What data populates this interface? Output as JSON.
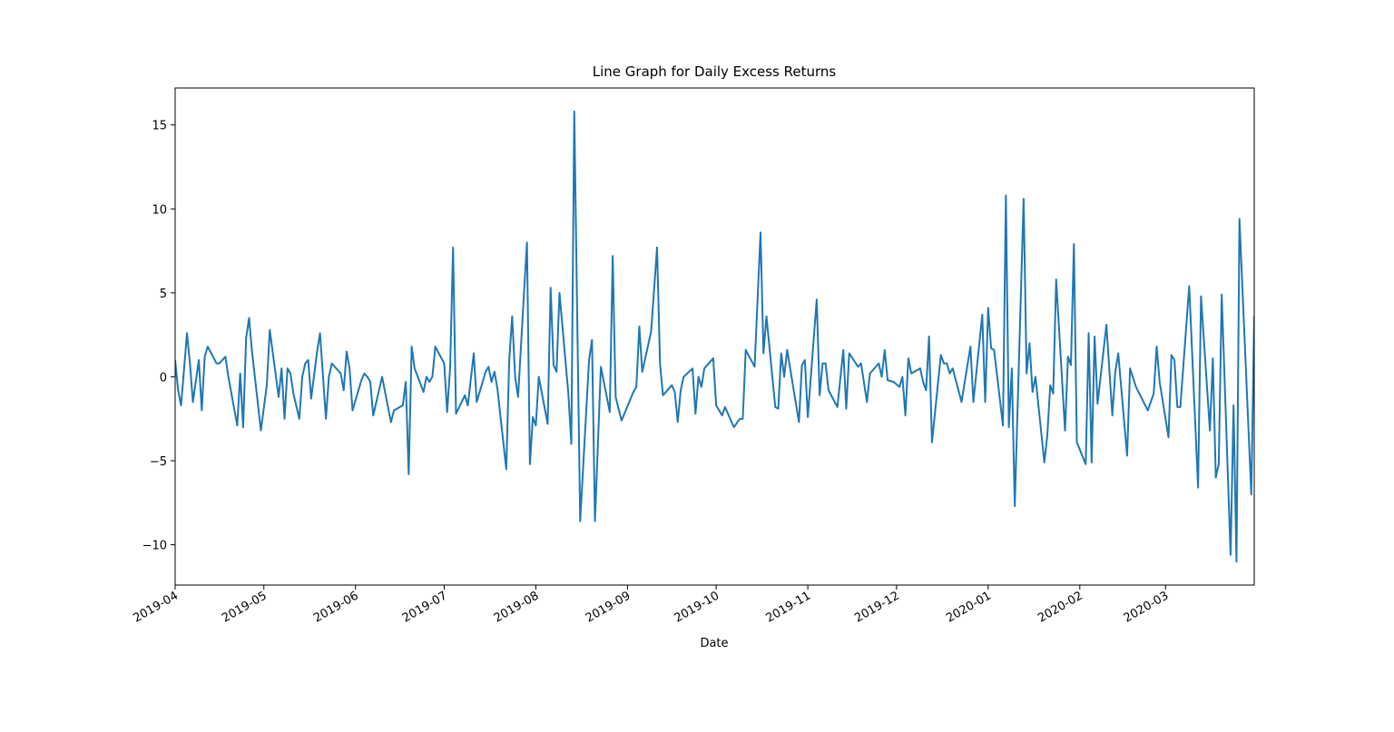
{
  "chart_data": {
    "type": "line",
    "title": "Line Graph for Daily Excess Returns",
    "xlabel": "Date",
    "color": "#1f77b4",
    "xlim": [
      0,
      365
    ],
    "ylim": [
      -12.4,
      17.2
    ],
    "xticks": [
      {
        "value": 0,
        "label": "2019-04"
      },
      {
        "value": 30,
        "label": "2019-05"
      },
      {
        "value": 61,
        "label": "2019-06"
      },
      {
        "value": 91,
        "label": "2019-07"
      },
      {
        "value": 122,
        "label": "2019-08"
      },
      {
        "value": 153,
        "label": "2019-09"
      },
      {
        "value": 183,
        "label": "2019-10"
      },
      {
        "value": 214,
        "label": "2019-11"
      },
      {
        "value": 244,
        "label": "2019-12"
      },
      {
        "value": 275,
        "label": "2020-01"
      },
      {
        "value": 306,
        "label": "2020-02"
      },
      {
        "value": 335,
        "label": "2020-03"
      }
    ],
    "yticks": [
      {
        "value": -10,
        "label": "−10"
      },
      {
        "value": -5,
        "label": "−5"
      },
      0,
      5,
      10,
      15
    ],
    "x": [
      0,
      1,
      2,
      4,
      5,
      6,
      8,
      9,
      10,
      11,
      14,
      15,
      17,
      18,
      21,
      22,
      23,
      24,
      25,
      26,
      29,
      31,
      32,
      35,
      36,
      37,
      38,
      39,
      40,
      42,
      43,
      44,
      45,
      46,
      48,
      49,
      51,
      52,
      53,
      56,
      57,
      58,
      59,
      60,
      63,
      64,
      65,
      66,
      67,
      70,
      72,
      73,
      74,
      77,
      78,
      79,
      80,
      81,
      84,
      85,
      86,
      87,
      88,
      91,
      92,
      93,
      94,
      95,
      98,
      99,
      101,
      102,
      105,
      106,
      107,
      108,
      109,
      112,
      113,
      114,
      115,
      116,
      118,
      119,
      120,
      121,
      122,
      123,
      126,
      127,
      128,
      129,
      130,
      133,
      134,
      135,
      137,
      140,
      141,
      142,
      144,
      147,
      148,
      149,
      151,
      155,
      156,
      157,
      158,
      161,
      163,
      164,
      165,
      168,
      169,
      170,
      171,
      172,
      175,
      176,
      177,
      178,
      179,
      182,
      183,
      185,
      186,
      189,
      191,
      192,
      193,
      196,
      198,
      199,
      200,
      203,
      204,
      205,
      206,
      207,
      211,
      212,
      213,
      214,
      217,
      218,
      219,
      220,
      221,
      224,
      226,
      227,
      228,
      231,
      232,
      234,
      235,
      238,
      239,
      240,
      241,
      243,
      245,
      246,
      247,
      248,
      249,
      252,
      253,
      254,
      255,
      256,
      259,
      260,
      261,
      262,
      263,
      266,
      269,
      270,
      273,
      274,
      275,
      276,
      277,
      280,
      281,
      282,
      283,
      284,
      287,
      288,
      289,
      290,
      291,
      294,
      295,
      296,
      297,
      298,
      301,
      302,
      303,
      304,
      305,
      308,
      309,
      310,
      311,
      312,
      315,
      317,
      318,
      319,
      322,
      323,
      325,
      329,
      331,
      332,
      333,
      336,
      337,
      338,
      339,
      340,
      343,
      346,
      347,
      350,
      351,
      352,
      353,
      354,
      357,
      358,
      359,
      360,
      364,
      365
    ],
    "values": [
      1.0,
      -0.8,
      -1.7,
      2.6,
      0.8,
      -1.5,
      1.0,
      -2.0,
      1.2,
      1.8,
      0.8,
      0.8,
      1.2,
      0,
      -2.9,
      0.2,
      -3.0,
      2.3,
      3.5,
      1.5,
      -3.2,
      -0.5,
      2.8,
      -1.2,
      0.5,
      -2.5,
      0.5,
      0.2,
      -1.0,
      -2.5,
      0,
      0.8,
      1.0,
      -1.3,
      1.5,
      2.6,
      -2.5,
      0,
      0.8,
      0.2,
      -0.8,
      1.5,
      0.5,
      -2.0,
      -0.2,
      0.2,
      0,
      -0.3,
      -2.3,
      0,
      -1.8,
      -2.7,
      -2.0,
      -1.7,
      -0.3,
      -5.8,
      1.8,
      0.5,
      -0.9,
      0,
      -0.3,
      0,
      1.8,
      0.8,
      -2.1,
      0.5,
      7.7,
      -2.2,
      -1.1,
      -1.7,
      1.4,
      -1.5,
      0.3,
      0.6,
      -0.3,
      0.3,
      -0.7,
      -5.5,
      1.0,
      3.6,
      0,
      -1.2,
      5.0,
      8.0,
      -5.2,
      -2.4,
      -2.9,
      0,
      -2.8,
      5.3,
      0.7,
      0.3,
      5.0,
      -1.0,
      -4.0,
      15.8,
      -8.6,
      1.0,
      2.2,
      -8.6,
      0.6,
      -2.1,
      7.2,
      -1.2,
      -2.6,
      -0.9,
      -0.6,
      3.0,
      0.3,
      2.7,
      7.7,
      0.8,
      -1.1,
      -0.5,
      -0.9,
      -2.7,
      -0.8,
      0,
      0.5,
      -2.2,
      0,
      -0.6,
      0.5,
      1.1,
      -1.7,
      -2.3,
      -1.8,
      -3.0,
      -2.5,
      -2.5,
      1.6,
      0.6,
      8.6,
      1.4,
      3.6,
      -1.8,
      -1.9,
      1.4,
      0,
      1.6,
      -2.7,
      0.7,
      1.0,
      -2.4,
      4.6,
      -1.1,
      0.8,
      0.8,
      -0.8,
      -1.8,
      1.6,
      -1.9,
      1.4,
      0.6,
      0.8,
      -1.5,
      0.2,
      0.8,
      0,
      1.6,
      -0.2,
      -0.3,
      -0.6,
      0,
      -2.3,
      1.1,
      0.2,
      0.5,
      -0.3,
      -0.8,
      2.4,
      -3.9,
      1.3,
      0.8,
      0.8,
      0.2,
      0.5,
      -1.5,
      1.8,
      -1.5,
      3.7,
      -1.5,
      4.1,
      1.7,
      1.6,
      -2.9,
      10.8,
      -3.0,
      0.5,
      -7.7,
      10.6,
      0.2,
      2.0,
      -0.9,
      0,
      -5.1,
      -3.5,
      -0.5,
      -1.0,
      5.8,
      -3.2,
      1.2,
      0.7,
      7.9,
      -3.9,
      -5.2,
      2.6,
      -5.1,
      2.4,
      -1.6,
      3.1,
      -2.3,
      0.3,
      1.4,
      -4.7,
      0.5,
      -0.6,
      -2.0,
      -1.0,
      1.8,
      -0.3,
      -3.6,
      1.3,
      1.0,
      -1.8,
      -1.8,
      5.4,
      -6.6,
      4.8,
      -3.2,
      1.1,
      -6.0,
      -5.2,
      4.9,
      -10.6,
      -1.7,
      -11.0,
      9.4,
      -7.0,
      3.6
    ]
  }
}
